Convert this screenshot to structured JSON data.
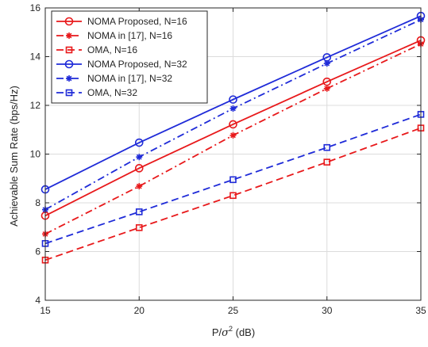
{
  "chart_data": {
    "type": "line",
    "xlabel_prefix": "P/",
    "xlabel_sigma": "σ",
    "xlabel_sup": "2",
    "xlabel_suffix": " (dB)",
    "ylabel": "Achievable Sum Rate (bps/Hz)",
    "xlim": [
      15,
      35
    ],
    "ylim": [
      4,
      16
    ],
    "xticks": [
      "15",
      "20",
      "25",
      "30",
      "35"
    ],
    "yticks": [
      "4",
      "6",
      "8",
      "10",
      "12",
      "14",
      "16"
    ],
    "grid": true,
    "legend_position": "top-left",
    "x": [
      15,
      20,
      25,
      30,
      35
    ],
    "series": [
      {
        "name": "NOMA Proposed, N=16",
        "color": "#e8191b",
        "dash": "solid",
        "marker": "circle",
        "values": [
          7.47,
          9.42,
          11.22,
          12.97,
          14.67
        ]
      },
      {
        "name": "NOMA in [17], N=16",
        "color": "#e8191b",
        "dash": "dashdot",
        "marker": "asterisk",
        "values": [
          6.72,
          8.68,
          10.77,
          12.69,
          14.52
        ]
      },
      {
        "name": "OMA, N=16",
        "color": "#e8191b",
        "dash": "dashed",
        "marker": "square",
        "values": [
          5.65,
          6.98,
          8.3,
          9.67,
          11.07
        ]
      },
      {
        "name": "NOMA Proposed, N=32",
        "color": "#1f2bd8",
        "dash": "solid",
        "marker": "circle",
        "values": [
          8.55,
          10.47,
          12.24,
          13.97,
          15.67
        ]
      },
      {
        "name": "NOMA in [17], N=32",
        "color": "#1f2bd8",
        "dash": "dashdot",
        "marker": "asterisk",
        "values": [
          7.72,
          9.88,
          11.87,
          13.72,
          15.52
        ]
      },
      {
        "name": "OMA, N=32",
        "color": "#1f2bd8",
        "dash": "dashed",
        "marker": "square",
        "values": [
          6.33,
          7.63,
          8.95,
          10.27,
          11.63
        ]
      }
    ]
  }
}
